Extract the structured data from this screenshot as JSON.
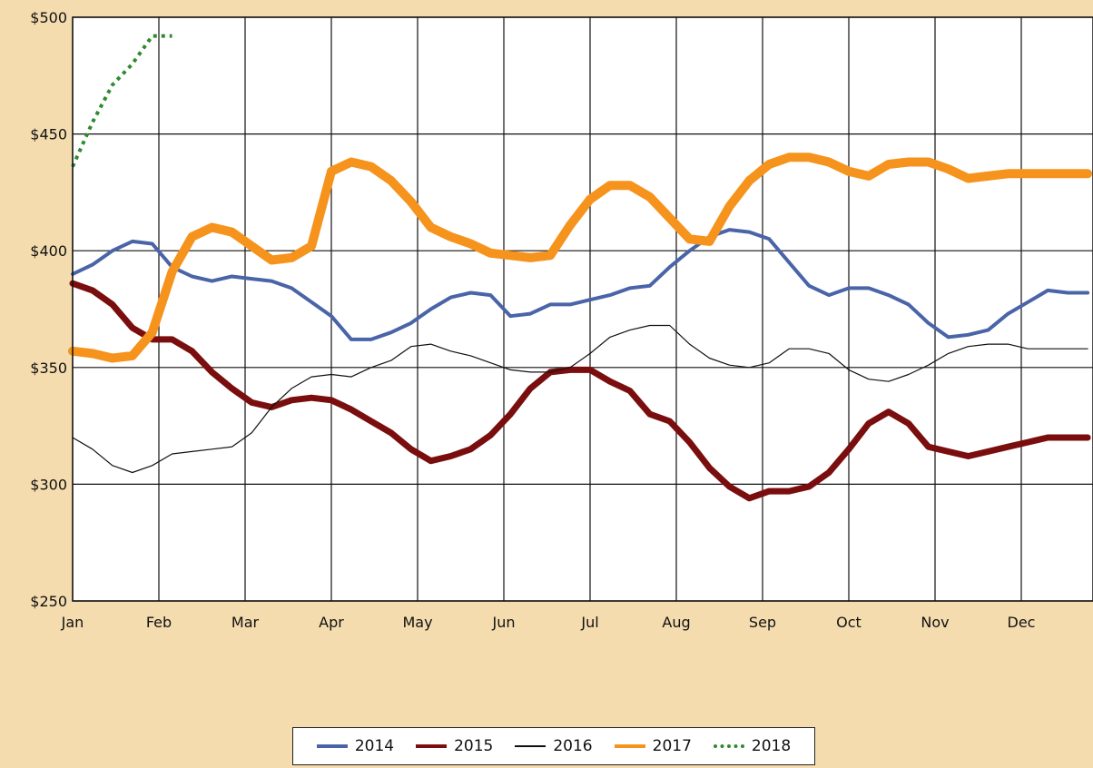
{
  "chart_data": {
    "type": "line",
    "title": "",
    "xlabel": "",
    "ylabel": "",
    "ylim": [
      250,
      500
    ],
    "y_ticks": [
      "$250",
      "$300",
      "$350",
      "$400",
      "$450",
      "$500"
    ],
    "y_tick_values": [
      250,
      300,
      350,
      400,
      450,
      500
    ],
    "months": [
      "Jan",
      "Feb",
      "Mar",
      "Apr",
      "May",
      "Jun",
      "Jul",
      "Aug",
      "Sep",
      "Oct",
      "Nov",
      "Dec"
    ],
    "x_unit": "week",
    "grid": true,
    "legend_position": "bottom",
    "series": [
      {
        "name": "2014",
        "color": "#4a64a8",
        "style": "solid",
        "weight": "medium",
        "x": [
          0,
          1,
          2,
          3,
          4,
          5,
          6,
          7,
          8,
          9,
          10,
          11,
          12,
          13,
          14,
          15,
          16,
          17,
          18,
          19,
          20,
          21,
          22,
          23,
          24,
          25,
          26,
          27,
          28,
          29,
          30,
          31,
          32,
          33,
          34,
          35,
          36,
          37,
          38,
          39,
          40,
          41,
          42,
          43,
          44,
          45,
          46,
          47,
          48,
          49,
          50,
          51
        ],
        "y": [
          390,
          394,
          400,
          404,
          403,
          393,
          389,
          387,
          389,
          388,
          387,
          384,
          378,
          372,
          362,
          362,
          365,
          369,
          375,
          380,
          382,
          381,
          372,
          373,
          377,
          377,
          379,
          381,
          384,
          385,
          393,
          400,
          406,
          409,
          408,
          405,
          395,
          385,
          381,
          384,
          384,
          381,
          377,
          369,
          363,
          364,
          366,
          373,
          378,
          383,
          382,
          382
        ]
      },
      {
        "name": "2015",
        "color": "#7a0e0e",
        "style": "solid",
        "weight": "thick",
        "x": [
          0,
          1,
          2,
          3,
          4,
          5,
          6,
          7,
          8,
          9,
          10,
          11,
          12,
          13,
          14,
          15,
          16,
          17,
          18,
          19,
          20,
          21,
          22,
          23,
          24,
          25,
          26,
          27,
          28,
          29,
          30,
          31,
          32,
          33,
          34,
          35,
          36,
          37,
          38,
          39,
          40,
          41,
          42,
          43,
          44,
          45,
          46,
          47,
          48,
          49,
          50,
          51
        ],
        "y": [
          386,
          383,
          377,
          367,
          362,
          362,
          357,
          348,
          341,
          335,
          333,
          336,
          337,
          336,
          332,
          327,
          322,
          315,
          310,
          312,
          315,
          321,
          330,
          341,
          348,
          349,
          349,
          344,
          340,
          330,
          327,
          318,
          307,
          299,
          294,
          297,
          297,
          299,
          305,
          315,
          326,
          331,
          326,
          316,
          314,
          312,
          314,
          316,
          318,
          320,
          320,
          320
        ]
      },
      {
        "name": "2016",
        "color": "#111111",
        "style": "solid",
        "weight": "thin",
        "x": [
          0,
          1,
          2,
          3,
          4,
          5,
          6,
          7,
          8,
          9,
          10,
          11,
          12,
          13,
          14,
          15,
          16,
          17,
          18,
          19,
          20,
          21,
          22,
          23,
          24,
          25,
          26,
          27,
          28,
          29,
          30,
          31,
          32,
          33,
          34,
          35,
          36,
          37,
          38,
          39,
          40,
          41,
          42,
          43,
          44,
          45,
          46,
          47,
          48,
          49,
          50,
          51
        ],
        "y": [
          320,
          315,
          308,
          305,
          308,
          313,
          314,
          315,
          316,
          322,
          333,
          341,
          346,
          347,
          346,
          350,
          353,
          359,
          360,
          357,
          355,
          352,
          349,
          348,
          348,
          350,
          356,
          363,
          366,
          368,
          368,
          360,
          354,
          351,
          350,
          352,
          358,
          358,
          356,
          349,
          345,
          344,
          347,
          351,
          356,
          359,
          360,
          360,
          358,
          358,
          358,
          358
        ]
      },
      {
        "name": "2017",
        "color": "#f5931c",
        "style": "solid",
        "weight": "extra-thick",
        "x": [
          0,
          1,
          2,
          3,
          4,
          5,
          6,
          7,
          8,
          9,
          10,
          11,
          12,
          13,
          14,
          15,
          16,
          17,
          18,
          19,
          20,
          21,
          22,
          23,
          24,
          25,
          26,
          27,
          28,
          29,
          30,
          31,
          32,
          33,
          34,
          35,
          36,
          37,
          38,
          39,
          40,
          41,
          42,
          43,
          44,
          45,
          46,
          47,
          48,
          49,
          50,
          51
        ],
        "y": [
          357,
          356,
          354,
          355,
          365,
          391,
          406,
          410,
          408,
          402,
          396,
          397,
          402,
          434,
          438,
          436,
          430,
          421,
          410,
          406,
          403,
          399,
          398,
          397,
          398,
          411,
          422,
          428,
          428,
          423,
          414,
          405,
          404,
          419,
          430,
          437,
          440,
          440,
          438,
          434,
          432,
          437,
          438,
          438,
          435,
          431,
          432,
          433,
          433,
          433,
          433,
          433
        ]
      },
      {
        "name": "2018",
        "color": "#2f8a2f",
        "style": "dotted",
        "weight": "medium",
        "x": [
          0,
          1,
          2,
          3,
          4,
          5
        ],
        "y": [
          436,
          455,
          471,
          480,
          492,
          492
        ]
      }
    ]
  },
  "legend": {
    "items": [
      {
        "label": "2014",
        "color": "#4a64a8",
        "style": "solid",
        "weight": "medium"
      },
      {
        "label": "2015",
        "color": "#7a0e0e",
        "style": "solid",
        "weight": "thick"
      },
      {
        "label": "2016",
        "color": "#111111",
        "style": "solid",
        "weight": "thin"
      },
      {
        "label": "2017",
        "color": "#f5931c",
        "style": "solid",
        "weight": "extra-thick"
      },
      {
        "label": "2018",
        "color": "#2f8a2f",
        "style": "dotted",
        "weight": "medium"
      }
    ]
  }
}
